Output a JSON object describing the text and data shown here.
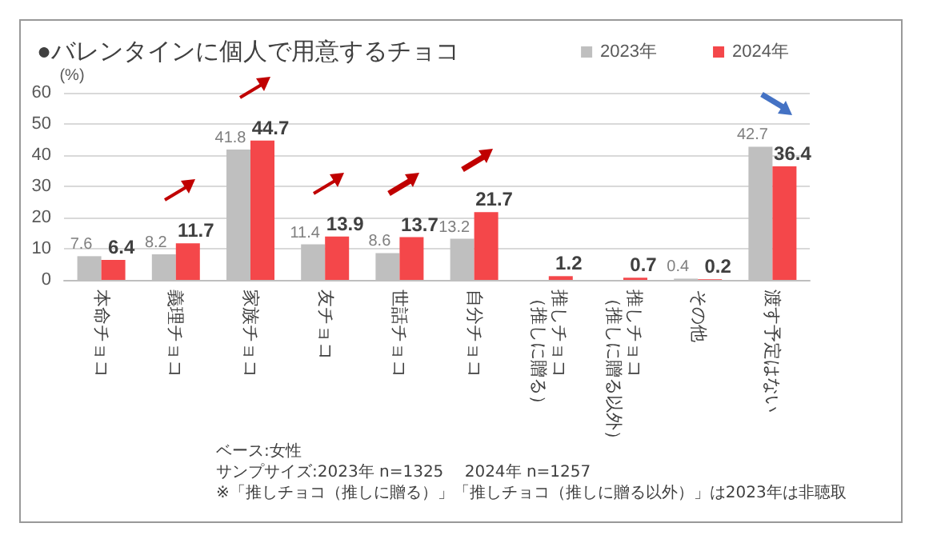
{
  "chart_data": {
    "type": "bar",
    "title": "●バレンタインに個人で用意するチョコ",
    "ylabel": "(%)",
    "categories": [
      "本命チョコ",
      "義理チョコ",
      "家族チョコ",
      "友チョコ",
      "世話チョコ",
      "自分チョコ",
      "推しチョコ（推しに贈る）",
      "推しチョコ（推しに贈る以外）",
      "その他",
      "渡す予定はない"
    ],
    "series": [
      {
        "name": "2023年",
        "color": "#bfbfbf",
        "values": [
          7.6,
          8.2,
          41.8,
          11.4,
          8.6,
          13.2,
          null,
          null,
          0.4,
          42.7
        ]
      },
      {
        "name": "2024年",
        "color": "#f4474a",
        "values": [
          6.4,
          11.7,
          44.7,
          13.9,
          13.7,
          21.7,
          1.2,
          0.7,
          0.2,
          36.4
        ]
      }
    ],
    "ylim": [
      0,
      60
    ],
    "yticks": [
      0,
      10,
      20,
      30,
      40,
      50,
      60
    ],
    "grid": "y",
    "legend": "top right",
    "data_labels": true,
    "annotations": [
      "ベース:女性",
      "サンプサイズ:2023年 n=1325　 2024年 n=1257",
      "※「推しチョコ（推しに贈る）」「推しチョコ（推しに贈る以外）」は2023年は非聴取"
    ]
  }
}
